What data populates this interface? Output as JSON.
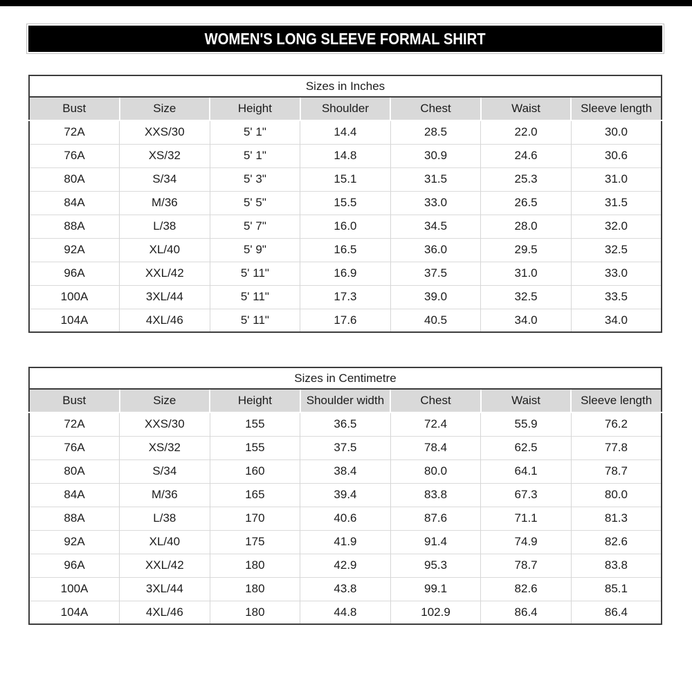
{
  "banner": {
    "title": "WOMEN'S LONG SLEEVE FORMAL SHIRT"
  },
  "colors": {
    "top_strip": "#000000",
    "banner_bg": "#000000",
    "banner_text": "#ffffff",
    "header_row_bg": "#d9d9d9",
    "table_outer_border": "#3d3d3d",
    "grid_line": "#d6d6d6",
    "body_text": "#1c1c1c"
  },
  "chart_data": [
    {
      "type": "table",
      "title": "Sizes in Inches",
      "columns": [
        "Bust",
        "Size",
        "Height",
        "Shoulder",
        "Chest",
        "Waist",
        "Sleeve length"
      ],
      "rows": [
        [
          "72A",
          "XXS/30",
          "5' 1\"",
          "14.4",
          "28.5",
          "22.0",
          "30.0"
        ],
        [
          "76A",
          "XS/32",
          "5' 1\"",
          "14.8",
          "30.9",
          "24.6",
          "30.6"
        ],
        [
          "80A",
          "S/34",
          "5' 3\"",
          "15.1",
          "31.5",
          "25.3",
          "31.0"
        ],
        [
          "84A",
          "M/36",
          "5' 5\"",
          "15.5",
          "33.0",
          "26.5",
          "31.5"
        ],
        [
          "88A",
          "L/38",
          "5' 7\"",
          "16.0",
          "34.5",
          "28.0",
          "32.0"
        ],
        [
          "92A",
          "XL/40",
          "5' 9\"",
          "16.5",
          "36.0",
          "29.5",
          "32.5"
        ],
        [
          "96A",
          "XXL/42",
          "5' 11\"",
          "16.9",
          "37.5",
          "31.0",
          "33.0"
        ],
        [
          "100A",
          "3XL/44",
          "5' 11\"",
          "17.3",
          "39.0",
          "32.5",
          "33.5"
        ],
        [
          "104A",
          "4XL/46",
          "5' 11\"",
          "17.6",
          "40.5",
          "34.0",
          "34.0"
        ]
      ]
    },
    {
      "type": "table",
      "title": "Sizes in Centimetre",
      "columns": [
        "Bust",
        "Size",
        "Height",
        "Shoulder width",
        "Chest",
        "Waist",
        "Sleeve length"
      ],
      "rows": [
        [
          "72A",
          "XXS/30",
          "155",
          "36.5",
          "72.4",
          "55.9",
          "76.2"
        ],
        [
          "76A",
          "XS/32",
          "155",
          "37.5",
          "78.4",
          "62.5",
          "77.8"
        ],
        [
          "80A",
          "S/34",
          "160",
          "38.4",
          "80.0",
          "64.1",
          "78.7"
        ],
        [
          "84A",
          "M/36",
          "165",
          "39.4",
          "83.8",
          "67.3",
          "80.0"
        ],
        [
          "88A",
          "L/38",
          "170",
          "40.6",
          "87.6",
          "71.1",
          "81.3"
        ],
        [
          "92A",
          "XL/40",
          "175",
          "41.9",
          "91.4",
          "74.9",
          "82.6"
        ],
        [
          "96A",
          "XXL/42",
          "180",
          "42.9",
          "95.3",
          "78.7",
          "83.8"
        ],
        [
          "100A",
          "3XL/44",
          "180",
          "43.8",
          "99.1",
          "82.6",
          "85.1"
        ],
        [
          "104A",
          "4XL/46",
          "180",
          "44.8",
          "102.9",
          "86.4",
          "86.4"
        ]
      ]
    }
  ]
}
